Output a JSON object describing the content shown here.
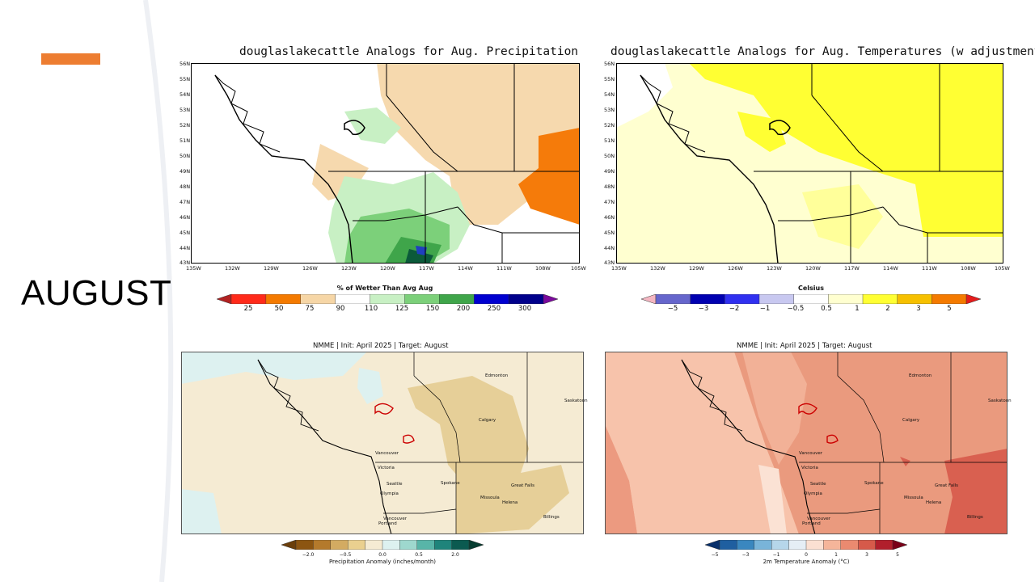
{
  "slide": {
    "title": "AUGUST",
    "accent_color": "#ed7d31"
  },
  "precip_map": {
    "title": "douglaslakecattle Analogs for Aug. Precipitation",
    "lat_ticks": [
      "56N",
      "55N",
      "54N",
      "53N",
      "52N",
      "51N",
      "50N",
      "49N",
      "48N",
      "47N",
      "46N",
      "45N",
      "44N",
      "43N"
    ],
    "lon_ticks": [
      "135W",
      "132W",
      "129W",
      "126W",
      "123W",
      "120W",
      "117W",
      "114W",
      "111W",
      "108W",
      "105W"
    ],
    "colorbar_title": "% of Wetter Than Avg Aug",
    "colorbar_labels": [
      "25",
      "50",
      "75",
      "90",
      "110",
      "125",
      "150",
      "200",
      "250",
      "300"
    ],
    "colorbar_colors": [
      "#b22222",
      "#ff2a1a",
      "#f47a00",
      "#f6d6a6",
      "#ffffff",
      "#c8f0c4",
      "#7cd07a",
      "#3fa54a",
      "#0000d0",
      "#00008b",
      "#7b0a9c"
    ]
  },
  "temp_map": {
    "title": "douglaslakecattle Analogs for Aug. Temperatures (w adjustment)",
    "lat_ticks": [
      "56N",
      "55N",
      "54N",
      "53N",
      "52N",
      "51N",
      "50N",
      "49N",
      "48N",
      "47N",
      "46N",
      "45N",
      "44N",
      "43N"
    ],
    "lon_ticks": [
      "135W",
      "132W",
      "129W",
      "126W",
      "123W",
      "120W",
      "117W",
      "114W",
      "111W",
      "108W",
      "105W"
    ],
    "colorbar_title": "Celsius",
    "colorbar_labels": [
      "−5",
      "−3",
      "−2",
      "−1",
      "−0.5",
      "0.5",
      "1",
      "2",
      "3",
      "5"
    ],
    "colorbar_colors": [
      "#f4b6c2",
      "#6666cc",
      "#0000b0",
      "#3030f0",
      "#c8c8f0",
      "#ffffff",
      "#ffffd0",
      "#ffff33",
      "#f6c000",
      "#f47a00",
      "#e51c1c"
    ]
  },
  "nmme_precip": {
    "title": "NMME | Init: April 2025 | Target: August",
    "colorbar_caption": "Precipitation Anomaly (inches/month)",
    "colorbar_labels": [
      "−2.0",
      "−0.5",
      "0.0",
      "0.5",
      "2.0"
    ],
    "colorbar_colors": [
      "#6b3f0b",
      "#8c5511",
      "#b47a2c",
      "#d3ab62",
      "#ead08f",
      "#f5ebd3",
      "#ddf1f0",
      "#9ed8ce",
      "#58b5a8",
      "#1f847b",
      "#0b5a50",
      "#063c30"
    ],
    "cities": [
      "Edmonton",
      "Saskatoon",
      "Calgary",
      "Vancouver",
      "Victoria",
      "Seattle",
      "Olympia",
      "Spokane",
      "Missoula",
      "Helena",
      "Great Falls",
      "Billings",
      "Vancouver",
      "Portland"
    ]
  },
  "nmme_temp": {
    "title": "NMME | Init: April 2025 | Target: August",
    "colorbar_caption": "2m Temperature Anomaly (°C)",
    "colorbar_labels": [
      "−5",
      "−3",
      "−1",
      "0",
      "1",
      "3",
      "5"
    ],
    "colorbar_colors": [
      "#08306b",
      "#1f5fa0",
      "#3a87bf",
      "#79b4d9",
      "#b6d6ea",
      "#e5eef5",
      "#fbe0d2",
      "#f5b59a",
      "#ea8a70",
      "#d65a4a",
      "#b11f2c",
      "#7a0019"
    ],
    "cities": [
      "Edmonton",
      "Saskatoon",
      "Calgary",
      "Vancouver",
      "Victoria",
      "Seattle",
      "Olympia",
      "Spokane",
      "Missoula",
      "Helena",
      "Great Falls",
      "Billings",
      "Vancouver",
      "Portland"
    ]
  }
}
